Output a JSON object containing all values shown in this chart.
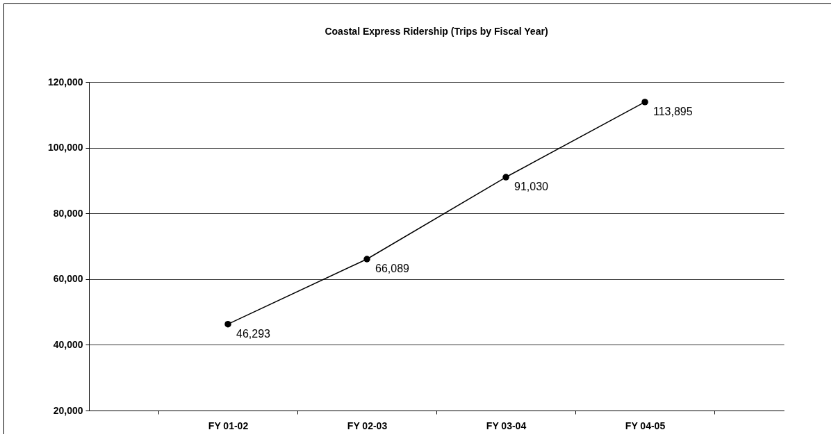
{
  "chart_data": {
    "type": "line",
    "title": "Coastal Express Ridership (Trips by Fiscal Year)",
    "categories": [
      "FY 01-02",
      "FY 02-03",
      "FY 03-04",
      "FY 04-05"
    ],
    "series": [
      {
        "color": "#000000",
        "values": [
          46293,
          66089,
          91030,
          113895
        ],
        "value_labels": [
          "46,293",
          "66,089",
          "91,030",
          "113,895"
        ]
      }
    ],
    "ylim": [
      20000,
      120000
    ],
    "yticks": [
      {
        "value": 20000,
        "label": "20,000"
      },
      {
        "value": 40000,
        "label": "40,000"
      },
      {
        "value": 60000,
        "label": "60,000"
      },
      {
        "value": 80000,
        "label": "80,000"
      },
      {
        "value": 100000,
        "label": "100,000"
      },
      {
        "value": 120000,
        "label": "120,000"
      }
    ],
    "grid": "y",
    "marker": "circle",
    "line_style": "solid"
  }
}
